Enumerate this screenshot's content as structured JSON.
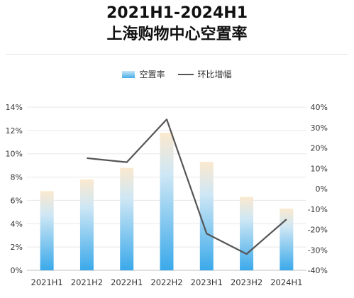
{
  "chart_data": {
    "type": "bar",
    "title": "2021H1-2024H1",
    "subtitle": "上海购物中心空置率",
    "categories": [
      "2021H1",
      "2021H2",
      "2022H1",
      "2022H2",
      "2023H1",
      "2023H2",
      "2024H1"
    ],
    "series": [
      {
        "name": "空置率",
        "type": "bar",
        "axis": "left",
        "values": [
          6.8,
          7.8,
          8.8,
          11.8,
          9.3,
          6.3,
          5.3
        ]
      },
      {
        "name": "环比增幅",
        "type": "line",
        "axis": "right",
        "values": [
          null,
          15,
          13,
          34,
          -22,
          -32,
          -15
        ]
      }
    ],
    "y_left": {
      "ticks": [
        "0%",
        "2%",
        "4%",
        "6%",
        "8%",
        "10%",
        "12%",
        "14%"
      ],
      "range": [
        0,
        14
      ]
    },
    "y_right": {
      "ticks": [
        "-40%",
        "-30%",
        "-20%",
        "-10%",
        "0%",
        "10%",
        "20%",
        "30%",
        "40%"
      ],
      "range": [
        -40,
        40
      ]
    },
    "legend_position": "top-center",
    "colors": {
      "bar_top": "#cfe7f5",
      "bar_bottom": "#3aa9ea",
      "line": "#555555"
    }
  }
}
